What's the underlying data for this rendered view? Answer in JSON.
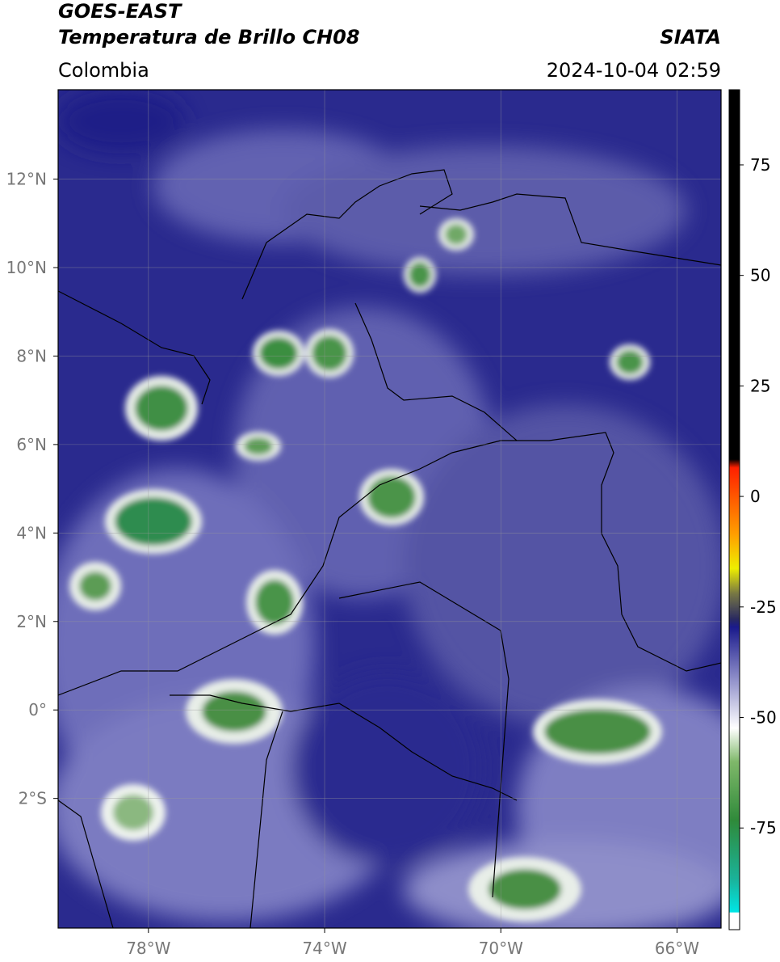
{
  "header": {
    "title": "GOES-EAST",
    "subtitle": "Temperatura de Brillo CH08",
    "source": "SIATA",
    "region": "Colombia",
    "datetime": "2024-10-04 02:59"
  },
  "map": {
    "xlim": [
      -80.05,
      -65
    ],
    "ylim": [
      -4.93,
      14.02
    ],
    "grid": true,
    "xticks": [
      {
        "value": -78,
        "label": "78°W"
      },
      {
        "value": -74,
        "label": "74°W"
      },
      {
        "value": -70,
        "label": "70°W"
      },
      {
        "value": -66,
        "label": "66°W"
      }
    ],
    "yticks": [
      {
        "value": 12,
        "label": "12°N"
      },
      {
        "value": 10,
        "label": "10°N"
      },
      {
        "value": 8,
        "label": "8°N"
      },
      {
        "value": 6,
        "label": "6°N"
      },
      {
        "value": 4,
        "label": "4°N"
      },
      {
        "value": 2,
        "label": "2°N"
      },
      {
        "value": 0,
        "label": "0°"
      },
      {
        "value": -2,
        "label": "2°S"
      }
    ]
  },
  "colorbar": {
    "lim": [
      -98,
      92
    ],
    "ticks": [
      75,
      50,
      25,
      0,
      -25,
      -50,
      -75
    ]
  }
}
